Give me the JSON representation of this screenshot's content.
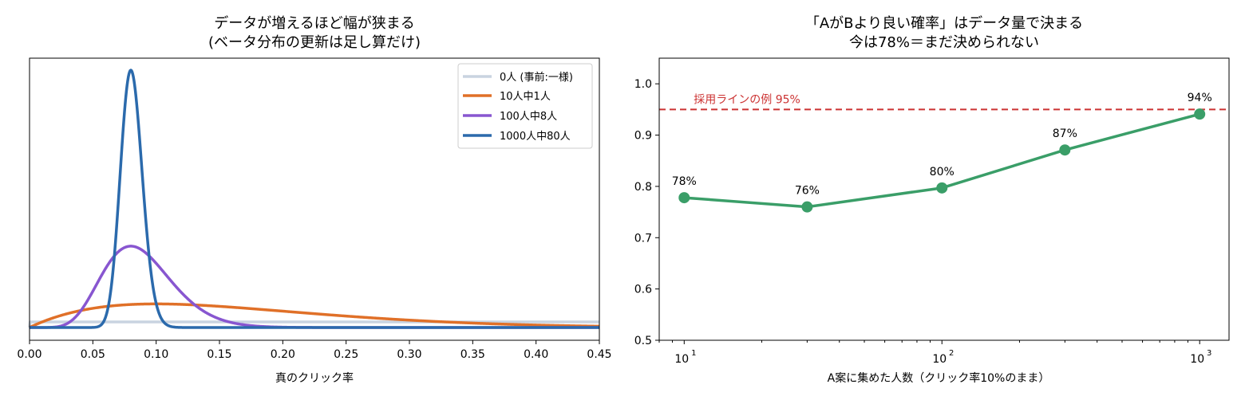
{
  "chart_data": [
    {
      "type": "line",
      "title": [
        "データが増えるほど幅が狭まる",
        "(ベータ分布の更新は足し算だけ)"
      ],
      "xlabel": "真のクリック率",
      "ylabel": "",
      "xlim": [
        0,
        0.45
      ],
      "x_ticks": [
        0,
        0.05,
        0.1,
        0.15,
        0.2,
        0.25,
        0.3,
        0.35,
        0.4,
        0.45
      ],
      "x_tick_labels": [
        "0.00",
        "0.05",
        "0.10",
        "0.15",
        "0.20",
        "0.25",
        "0.30",
        "0.35",
        "0.40",
        "0.45"
      ],
      "y_ticks_shown": false,
      "grid": false,
      "legend_position": "top-right",
      "series": [
        {
          "name": "0人 (事前:一様)",
          "distribution": "beta",
          "alpha": 1,
          "beta": 1,
          "color": "#c9d3e0"
        },
        {
          "name": "10人中1人",
          "distribution": "beta",
          "alpha": 2,
          "beta": 10,
          "color": "#e07028"
        },
        {
          "name": "100人中8人",
          "distribution": "beta",
          "alpha": 9,
          "beta": 93,
          "color": "#8856d0"
        },
        {
          "name": "1000人中80人",
          "distribution": "beta",
          "alpha": 81,
          "beta": 921,
          "color": "#2b6aac"
        }
      ]
    },
    {
      "type": "line",
      "title": [
        "「AがBより良い確率」はデータ量で決まる",
        "今は78%＝まだ決められない"
      ],
      "xlabel": "A案に集めた人数（クリック率10%のまま）",
      "ylabel": "",
      "x_scale": "log",
      "xlim": [
        8,
        1300
      ],
      "ylim": [
        0.5,
        1.05
      ],
      "y_ticks": [
        0.5,
        0.6,
        0.7,
        0.8,
        0.9,
        1.0
      ],
      "y_tick_labels": [
        "0.5",
        "0.6",
        "0.7",
        "0.8",
        "0.9",
        "1.0"
      ],
      "x_tick_labels": [
        {
          "base": "10",
          "exp": "1"
        },
        {
          "base": "10",
          "exp": "2"
        },
        {
          "base": "10",
          "exp": "3"
        }
      ],
      "grid": false,
      "series": [
        {
          "x": [
            10,
            30,
            100,
            300,
            1000
          ],
          "y": [
            0.778,
            0.76,
            0.797,
            0.871,
            0.941
          ],
          "labels": [
            "78%",
            "76%",
            "80%",
            "87%",
            "94%"
          ],
          "color": "#3a9e68"
        }
      ],
      "reference_line": {
        "y": 0.95,
        "label": "採用ラインの例 95%",
        "color": "#cc3333",
        "style": "dashed"
      }
    }
  ]
}
